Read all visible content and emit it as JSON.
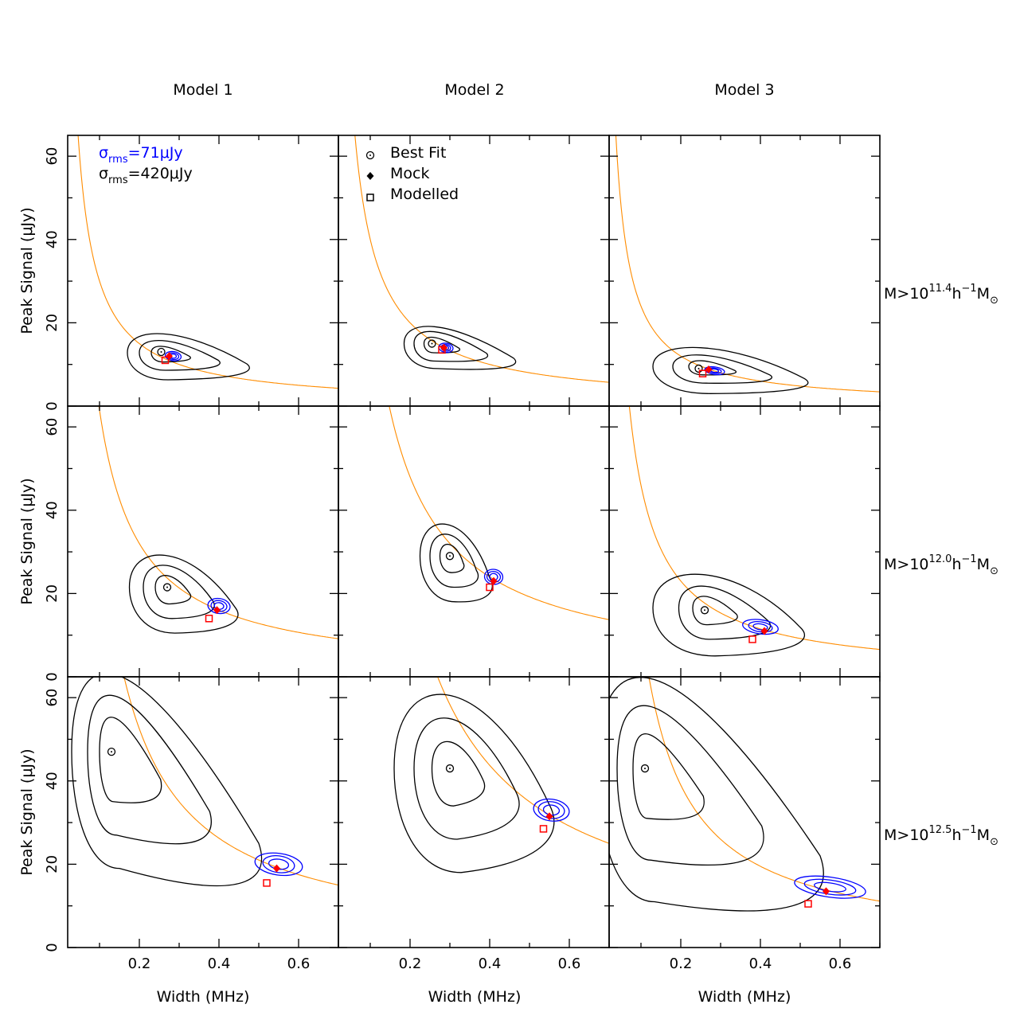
{
  "chart_data": {
    "type": "scatter",
    "title": "",
    "column_titles": [
      "Model 1",
      "Model 2",
      "Model 3"
    ],
    "row_labels": [
      {
        "base": "M>10",
        "exp": "11.4",
        "unit": "h",
        "unit_exp": "−1",
        "sub": "M",
        "sub_sym": "⊙"
      },
      {
        "base": "M>10",
        "exp": "12.0",
        "unit": "h",
        "unit_exp": "−1",
        "sub": "M",
        "sub_sym": "⊙"
      },
      {
        "base": "M>10",
        "exp": "12.5",
        "unit": "h",
        "unit_exp": "−1",
        "sub": "M",
        "sub_sym": "⊙"
      }
    ],
    "xlabel": "Width (MHz)",
    "ylabel": "Peak Signal (μJy)",
    "xlim": [
      0.02,
      0.7
    ],
    "ylim": [
      0,
      65
    ],
    "xticks": [
      0.2,
      0.4,
      0.6
    ],
    "xtick_labels": [
      "0.2",
      "0.4",
      "0.6"
    ],
    "yticks": [
      0,
      20,
      40,
      60
    ],
    "ytick_labels": [
      "0",
      "20",
      "40",
      "60"
    ],
    "legend_noise": [
      {
        "sym": "σ",
        "sub": "rms",
        "text": "=71μJy",
        "color": "#0000ff"
      },
      {
        "sym": "σ",
        "sub": "rms",
        "text": "=420μJy",
        "color": "#000000"
      }
    ],
    "legend_markers": [
      {
        "label": "Best Fit",
        "marker": "circle-dot"
      },
      {
        "label": "Mock",
        "marker": "diamond"
      },
      {
        "label": "Modelled",
        "marker": "square"
      }
    ],
    "colors": {
      "curve": "#ff8c00",
      "black_contours": "#000000",
      "blue_contours": "#0000ff",
      "markers": "#ff0000"
    },
    "panels": [
      {
        "row": 0,
        "col": 0,
        "curve_k": 3.0,
        "best_fit": [
          0.255,
          13.0
        ],
        "mock": [
          0.275,
          12.0
        ],
        "modelled": [
          0.265,
          11.0
        ],
        "black": {
          "center": [
            0.255,
            12.8
          ],
          "tail": [
            0.47,
            8.5
          ],
          "widths": [
            0.025,
            0.055,
            0.085
          ],
          "heights": [
            2.2,
            4.2,
            6.5
          ]
        },
        "blue": {
          "center": [
            0.285,
            12.0
          ],
          "widths": [
            0.008,
            0.014,
            0.02
          ],
          "heights": [
            0.5,
            0.8,
            1.1
          ]
        }
      },
      {
        "row": 0,
        "col": 1,
        "curve_k": 4.0,
        "best_fit": [
          0.255,
          15.0
        ],
        "mock": [
          0.285,
          14.0
        ],
        "modelled": [
          0.28,
          13.5
        ],
        "black": {
          "center": [
            0.255,
            15.0
          ],
          "tail": [
            0.46,
            10.0
          ],
          "widths": [
            0.02,
            0.045,
            0.07
          ],
          "heights": [
            2.2,
            4.2,
            6.0
          ]
        },
        "blue": {
          "center": [
            0.29,
            14.0
          ],
          "widths": [
            0.007,
            0.012,
            0.018
          ],
          "heights": [
            0.5,
            0.8,
            1.1
          ]
        }
      },
      {
        "row": 0,
        "col": 2,
        "curve_k": 2.4,
        "best_fit": [
          0.245,
          9.0
        ],
        "mock": [
          0.27,
          8.8
        ],
        "modelled": [
          0.255,
          7.8
        ],
        "black": {
          "center": [
            0.25,
            9.5
          ],
          "tail": [
            0.51,
            5.0
          ],
          "widths": [
            0.03,
            0.07,
            0.12
          ],
          "heights": [
            2.0,
            4.0,
            6.5
          ]
        },
        "blue": {
          "center": [
            0.285,
            8.5
          ],
          "widths": [
            0.01,
            0.017,
            0.025
          ],
          "heights": [
            0.4,
            0.6,
            0.9
          ]
        }
      },
      {
        "row": 1,
        "col": 0,
        "curve_k": 6.4,
        "best_fit": [
          0.27,
          21.5
        ],
        "mock": [
          0.395,
          16.0
        ],
        "modelled": [
          0.375,
          14.0
        ],
        "black": {
          "center": [
            0.27,
            21.5
          ],
          "tail": [
            0.44,
            14.0
          ],
          "widths": [
            0.03,
            0.06,
            0.095
          ],
          "heights": [
            4.0,
            7.5,
            11.0
          ]
        },
        "blue": {
          "center": [
            0.4,
            17.0
          ],
          "widths": [
            0.012,
            0.02,
            0.028
          ],
          "heights": [
            0.8,
            1.3,
            1.8
          ]
        }
      },
      {
        "row": 1,
        "col": 1,
        "curve_k": 9.6,
        "best_fit": [
          0.3,
          29.0
        ],
        "mock": [
          0.41,
          23.0
        ],
        "modelled": [
          0.4,
          21.5
        ],
        "black": {
          "center": [
            0.3,
            29.0
          ],
          "tail": [
            0.4,
            21.0
          ],
          "widths": [
            0.025,
            0.05,
            0.075
          ],
          "heights": [
            4.0,
            7.5,
            11.0
          ]
        },
        "blue": {
          "center": [
            0.41,
            24.0
          ],
          "widths": [
            0.01,
            0.017,
            0.023
          ],
          "heights": [
            0.8,
            1.3,
            1.8
          ]
        }
      },
      {
        "row": 1,
        "col": 2,
        "curve_k": 4.6,
        "best_fit": [
          0.26,
          16.0
        ],
        "mock": [
          0.41,
          11.0
        ],
        "modelled": [
          0.38,
          9.0
        ],
        "black": {
          "center": [
            0.26,
            16.5
          ],
          "tail": [
            0.5,
            9.0
          ],
          "widths": [
            0.03,
            0.065,
            0.13
          ],
          "heights": [
            4.0,
            7.5,
            11.5
          ]
        },
        "blue": {
          "center": [
            0.4,
            12.0
          ],
          "widths": [
            0.018,
            0.03,
            0.045
          ],
          "heights": [
            0.7,
            1.2,
            1.7
          ]
        }
      },
      {
        "row": 2,
        "col": 0,
        "curve_k": 10.5,
        "best_fit": [
          0.13,
          47.0
        ],
        "mock": [
          0.545,
          19.0
        ],
        "modelled": [
          0.52,
          15.5
        ],
        "black": {
          "center": [
            0.13,
            47.0
          ],
          "tail": [
            0.5,
            18.0
          ],
          "widths": [
            0.03,
            0.06,
            0.1
          ],
          "heights": [
            12.0,
            20.0,
            28.0
          ]
        },
        "blue": {
          "center": [
            0.55,
            20.0
          ],
          "widths": [
            0.025,
            0.04,
            0.06
          ],
          "heights": [
            1.2,
            2.0,
            2.6
          ]
        }
      },
      {
        "row": 2,
        "col": 1,
        "curve_k": 17.5,
        "best_fit": [
          0.3,
          43.0
        ],
        "mock": [
          0.55,
          31.5
        ],
        "modelled": [
          0.535,
          28.5
        ],
        "black": {
          "center": [
            0.3,
            43.0
          ],
          "tail": [
            0.55,
            28.0
          ],
          "widths": [
            0.045,
            0.09,
            0.14
          ],
          "heights": [
            9.0,
            17.0,
            25.0
          ]
        },
        "blue": {
          "center": [
            0.555,
            33.0
          ],
          "widths": [
            0.02,
            0.033,
            0.045
          ],
          "heights": [
            1.2,
            2.0,
            2.6
          ]
        }
      },
      {
        "row": 2,
        "col": 2,
        "curve_k": 7.8,
        "best_fit": [
          0.11,
          43.0
        ],
        "mock": [
          0.565,
          13.5
        ],
        "modelled": [
          0.52,
          10.5
        ],
        "black": {
          "center": [
            0.11,
            43.0
          ],
          "tail": [
            0.55,
            14.0
          ],
          "widths": [
            0.03,
            0.07,
            0.12
          ],
          "heights": [
            12.0,
            22.0,
            32.0
          ]
        },
        "blue": {
          "center": [
            0.575,
            14.5
          ],
          "widths": [
            0.04,
            0.065,
            0.09
          ],
          "heights": [
            1.0,
            1.7,
            2.4
          ]
        }
      }
    ]
  }
}
